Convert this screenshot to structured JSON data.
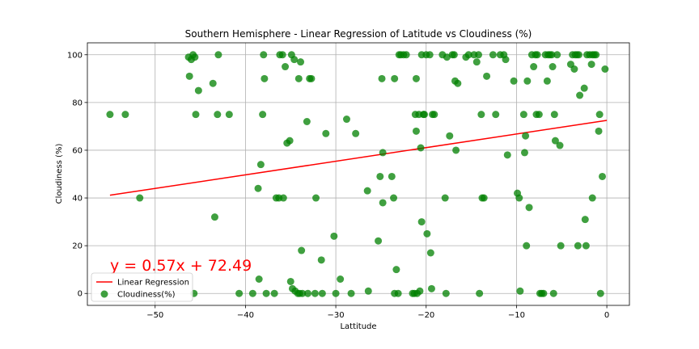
{
  "chart_data": {
    "type": "scatter",
    "title": "Southern Hemisphere - Linear Regression of Latitude vs Cloudiness (%)",
    "xlabel": "Lattitude",
    "ylabel": "Cloudiness (%)",
    "xlim": [
      -57.5,
      2.5
    ],
    "ylim": [
      -5,
      105
    ],
    "xticks": [
      -50,
      -40,
      -30,
      -20,
      -10,
      0
    ],
    "yticks": [
      0,
      20,
      40,
      60,
      80,
      100
    ],
    "xtick_labels": [
      "−50",
      "−40",
      "−30",
      "−20",
      "−10",
      "0"
    ],
    "ytick_labels": [
      "0",
      "20",
      "40",
      "60",
      "80",
      "100"
    ],
    "grid": true,
    "legend_position": "lower-left",
    "regression": {
      "name": "Linear Regression",
      "color": "#ff0000",
      "slope": 0.57,
      "intercept": 72.49,
      "x_range": [
        -55,
        0
      ],
      "equation": "y = 0.57x + 72.49"
    },
    "series": [
      {
        "name": "Cloudiness(%)",
        "color": "#008000",
        "points": [
          [
            -55,
            75
          ],
          [
            -53.3,
            75
          ],
          [
            -51.7,
            40
          ],
          [
            -46.3,
            99
          ],
          [
            -46,
            98
          ],
          [
            -45.8,
            100
          ],
          [
            -45.6,
            99
          ],
          [
            -46.2,
            91
          ],
          [
            -45.5,
            75
          ],
          [
            -45.2,
            85
          ],
          [
            -45.7,
            0
          ],
          [
            -43.6,
            88
          ],
          [
            -43,
            100
          ],
          [
            -43.1,
            75
          ],
          [
            -41.8,
            75
          ],
          [
            -43.4,
            32
          ],
          [
            -40.7,
            0
          ],
          [
            -39.2,
            0
          ],
          [
            -38.6,
            44
          ],
          [
            -38.5,
            6
          ],
          [
            -38.3,
            54
          ],
          [
            -38.1,
            75
          ],
          [
            -38,
            100
          ],
          [
            -37.9,
            90
          ],
          [
            -37.7,
            0
          ],
          [
            -36.8,
            0
          ],
          [
            -36.6,
            40
          ],
          [
            -36.3,
            40
          ],
          [
            -36.2,
            100
          ],
          [
            -35.9,
            100
          ],
          [
            -35.8,
            40
          ],
          [
            -35.6,
            95
          ],
          [
            -35.4,
            63
          ],
          [
            -35.1,
            64
          ],
          [
            -35,
            5
          ],
          [
            -34.9,
            100
          ],
          [
            -34.8,
            2
          ],
          [
            -34.5,
            1
          ],
          [
            -34.6,
            98
          ],
          [
            -34.2,
            0
          ],
          [
            -34,
            0
          ],
          [
            -34.1,
            90
          ],
          [
            -33.9,
            97
          ],
          [
            -33.8,
            18
          ],
          [
            -33.7,
            0
          ],
          [
            -33.2,
            72
          ],
          [
            -33.1,
            0
          ],
          [
            -32.9,
            90
          ],
          [
            -32.7,
            90
          ],
          [
            -32.3,
            0
          ],
          [
            -32.2,
            40
          ],
          [
            -31.6,
            14
          ],
          [
            -31.5,
            0
          ],
          [
            -31.1,
            67
          ],
          [
            -30.2,
            24
          ],
          [
            -30,
            0
          ],
          [
            -29.5,
            6
          ],
          [
            -28.8,
            73
          ],
          [
            -28.3,
            0
          ],
          [
            -27.8,
            67
          ],
          [
            -26.5,
            43
          ],
          [
            -26.4,
            1
          ],
          [
            -25.3,
            22
          ],
          [
            -25.1,
            49
          ],
          [
            -24.9,
            90
          ],
          [
            -24.8,
            59
          ],
          [
            -24.8,
            38
          ],
          [
            -23.8,
            49
          ],
          [
            -23.6,
            40
          ],
          [
            -23.5,
            90
          ],
          [
            -23.5,
            0
          ],
          [
            -23.3,
            10
          ],
          [
            -23.1,
            0
          ],
          [
            -23,
            100
          ],
          [
            -22.8,
            100
          ],
          [
            -22.5,
            100
          ],
          [
            -22.2,
            100
          ],
          [
            -21.5,
            0
          ],
          [
            -21.3,
            0
          ],
          [
            -21.2,
            75
          ],
          [
            -21.1,
            68
          ],
          [
            -21.1,
            90
          ],
          [
            -21,
            0
          ],
          [
            -20.8,
            75
          ],
          [
            -20.7,
            1
          ],
          [
            -20.6,
            61
          ],
          [
            -20.5,
            30
          ],
          [
            -20.5,
            100
          ],
          [
            -20.3,
            75
          ],
          [
            -20.2,
            75
          ],
          [
            -20,
            100
          ],
          [
            -19.9,
            25
          ],
          [
            -19.6,
            100
          ],
          [
            -19.5,
            17
          ],
          [
            -19.4,
            2
          ],
          [
            -19.3,
            75
          ],
          [
            -19.1,
            75
          ],
          [
            -18.2,
            100
          ],
          [
            -17.9,
            40
          ],
          [
            -17.8,
            0
          ],
          [
            -17.7,
            99
          ],
          [
            -17.4,
            66
          ],
          [
            -17.1,
            100
          ],
          [
            -16.9,
            100
          ],
          [
            -16.8,
            89
          ],
          [
            -16.7,
            60
          ],
          [
            -16.5,
            88
          ],
          [
            -15.6,
            99
          ],
          [
            -15.3,
            100
          ],
          [
            -14.7,
            100
          ],
          [
            -14.4,
            97
          ],
          [
            -14.2,
            100
          ],
          [
            -14.1,
            0
          ],
          [
            -13.9,
            75
          ],
          [
            -13.8,
            40
          ],
          [
            -13.6,
            40
          ],
          [
            -13.3,
            91
          ],
          [
            -12.6,
            100
          ],
          [
            -12.3,
            75
          ],
          [
            -11.8,
            100
          ],
          [
            -11.4,
            100
          ],
          [
            -11.2,
            98
          ],
          [
            -11,
            58
          ],
          [
            -10.3,
            89
          ],
          [
            -9.9,
            42
          ],
          [
            -9.7,
            40
          ],
          [
            -9.6,
            1
          ],
          [
            -9.2,
            75
          ],
          [
            -9.1,
            59
          ],
          [
            -9,
            66
          ],
          [
            -8.9,
            20
          ],
          [
            -8.8,
            89
          ],
          [
            -8.6,
            36
          ],
          [
            -8.3,
            100
          ],
          [
            -8.1,
            95
          ],
          [
            -7.9,
            100
          ],
          [
            -7.8,
            75
          ],
          [
            -7.7,
            100
          ],
          [
            -7.5,
            75
          ],
          [
            -7.4,
            0
          ],
          [
            -7.2,
            0
          ],
          [
            -7,
            0
          ],
          [
            -6.8,
            100
          ],
          [
            -6.6,
            89
          ],
          [
            -6.5,
            100
          ],
          [
            -6.3,
            100
          ],
          [
            -6.1,
            100
          ],
          [
            -6,
            95
          ],
          [
            -5.9,
            0
          ],
          [
            -5.8,
            75
          ],
          [
            -5.7,
            64
          ],
          [
            -5.5,
            100
          ],
          [
            -5.2,
            62
          ],
          [
            -5.1,
            20
          ],
          [
            -4,
            96
          ],
          [
            -3.8,
            100
          ],
          [
            -3.6,
            94
          ],
          [
            -3.5,
            100
          ],
          [
            -3.3,
            100
          ],
          [
            -3.2,
            20
          ],
          [
            -3.1,
            100
          ],
          [
            -3,
            83
          ],
          [
            -2.5,
            86
          ],
          [
            -2.4,
            31
          ],
          [
            -2.3,
            20
          ],
          [
            -2.2,
            100
          ],
          [
            -1.9,
            100
          ],
          [
            -1.7,
            96
          ],
          [
            -1.6,
            100
          ],
          [
            -1.6,
            40
          ],
          [
            -1.4,
            100
          ],
          [
            -1.2,
            100
          ],
          [
            -0.9,
            68
          ],
          [
            -0.8,
            75
          ],
          [
            -0.7,
            0
          ],
          [
            -0.5,
            49
          ],
          [
            -0.2,
            94
          ]
        ]
      }
    ]
  }
}
